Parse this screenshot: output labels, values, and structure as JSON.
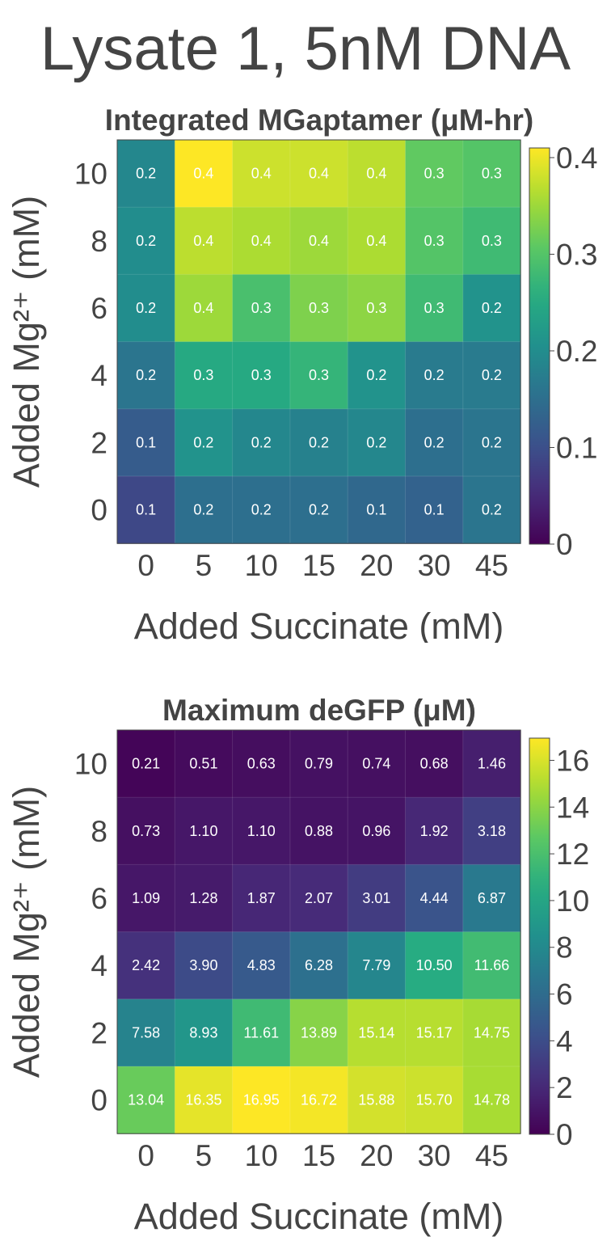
{
  "title": "Lysate 1, 5nM DNA",
  "chart_data": [
    {
      "type": "heatmap",
      "title": "Integrated MGaptamer (μM-hr)",
      "xlabel": "Added Succinate (mM)",
      "ylabel": "Added Mg²⁺ (mM)",
      "x_categories": [
        "0",
        "5",
        "10",
        "15",
        "20",
        "30",
        "45"
      ],
      "y_categories": [
        "10",
        "8",
        "6",
        "4",
        "2",
        "0"
      ],
      "values": [
        [
          0.19,
          0.41,
          0.38,
          0.38,
          0.37,
          0.31,
          0.3
        ],
        [
          0.2,
          0.37,
          0.36,
          0.35,
          0.36,
          0.3,
          0.28
        ],
        [
          0.2,
          0.35,
          0.29,
          0.33,
          0.34,
          0.28,
          0.21
        ],
        [
          0.16,
          0.25,
          0.25,
          0.27,
          0.21,
          0.17,
          0.17
        ],
        [
          0.12,
          0.21,
          0.19,
          0.18,
          0.19,
          0.15,
          0.16
        ],
        [
          0.09,
          0.15,
          0.15,
          0.15,
          0.14,
          0.13,
          0.16
        ]
      ],
      "labels": [
        [
          "0.2",
          "0.4",
          "0.4",
          "0.4",
          "0.4",
          "0.3",
          "0.3"
        ],
        [
          "0.2",
          "0.4",
          "0.4",
          "0.4",
          "0.4",
          "0.3",
          "0.3"
        ],
        [
          "0.2",
          "0.4",
          "0.3",
          "0.3",
          "0.3",
          "0.3",
          "0.2"
        ],
        [
          "0.2",
          "0.3",
          "0.3",
          "0.3",
          "0.2",
          "0.2",
          "0.2"
        ],
        [
          "0.1",
          "0.2",
          "0.2",
          "0.2",
          "0.2",
          "0.2",
          "0.2"
        ],
        [
          "0.1",
          "0.2",
          "0.2",
          "0.2",
          "0.1",
          "0.1",
          "0.2"
        ]
      ],
      "colorbar": {
        "range": [
          0,
          0.41
        ],
        "ticks": [
          0,
          0.1,
          0.2,
          0.3,
          0.4
        ],
        "tick_labels": [
          "0",
          "0.1",
          "0.2",
          "0.3",
          "0.4"
        ]
      },
      "colormap": "viridis"
    },
    {
      "type": "heatmap",
      "title": "Maximum deGFP (μM)",
      "xlabel": "Added Succinate (mM)",
      "ylabel": "Added Mg²⁺ (mM)",
      "x_categories": [
        "0",
        "5",
        "10",
        "15",
        "20",
        "30",
        "45"
      ],
      "y_categories": [
        "10",
        "8",
        "6",
        "4",
        "2",
        "0"
      ],
      "values": [
        [
          0.21,
          0.51,
          0.63,
          0.79,
          0.74,
          0.68,
          1.46
        ],
        [
          0.73,
          1.1,
          1.1,
          0.88,
          0.96,
          1.92,
          3.18
        ],
        [
          1.09,
          1.28,
          1.87,
          2.07,
          3.01,
          4.44,
          6.87
        ],
        [
          2.42,
          3.9,
          4.83,
          6.28,
          7.79,
          10.5,
          11.66
        ],
        [
          7.58,
          8.93,
          11.61,
          13.89,
          15.14,
          15.17,
          14.75
        ],
        [
          13.04,
          16.35,
          16.95,
          16.72,
          15.88,
          15.7,
          14.78
        ]
      ],
      "labels": [
        [
          "0.21",
          "0.51",
          "0.63",
          "0.79",
          "0.74",
          "0.68",
          "1.46"
        ],
        [
          "0.73",
          "1.10",
          "1.10",
          "0.88",
          "0.96",
          "1.92",
          "3.18"
        ],
        [
          "1.09",
          "1.28",
          "1.87",
          "2.07",
          "3.01",
          "4.44",
          "6.87"
        ],
        [
          "2.42",
          "3.90",
          "4.83",
          "6.28",
          "7.79",
          "10.50",
          "11.66"
        ],
        [
          "7.58",
          "8.93",
          "11.61",
          "13.89",
          "15.14",
          "15.17",
          "14.75"
        ],
        [
          "13.04",
          "16.35",
          "16.95",
          "16.72",
          "15.88",
          "15.70",
          "14.78"
        ]
      ],
      "colorbar": {
        "range": [
          0,
          16.95
        ],
        "ticks": [
          0,
          2,
          4,
          6,
          8,
          10,
          12,
          14,
          16
        ],
        "tick_labels": [
          "0",
          "2",
          "4",
          "6",
          "8",
          "10",
          "12",
          "14",
          "16"
        ]
      },
      "colormap": "viridis"
    }
  ]
}
